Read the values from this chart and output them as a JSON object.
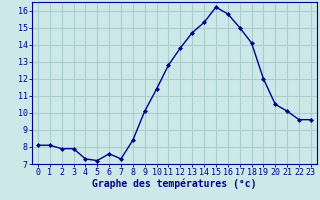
{
  "hours": [
    0,
    1,
    2,
    3,
    4,
    5,
    6,
    7,
    8,
    9,
    10,
    11,
    12,
    13,
    14,
    15,
    16,
    17,
    18,
    19,
    20,
    21,
    22,
    23
  ],
  "temperatures": [
    8.1,
    8.1,
    7.9,
    7.9,
    7.3,
    7.2,
    7.6,
    7.3,
    8.4,
    10.1,
    11.4,
    12.8,
    13.8,
    14.7,
    15.3,
    16.2,
    15.8,
    15.0,
    14.1,
    12.0,
    10.5,
    10.1,
    9.6,
    9.6
  ],
  "line_color": "#00008B",
  "marker": "D",
  "marker_size": 2.0,
  "background_color": "#cce8e8",
  "grid_color": "#aacece",
  "xlabel": "Graphe des températures (°c)",
  "xlabel_color": "#00008B",
  "tick_color": "#00008B",
  "ylim": [
    7,
    16.5
  ],
  "yticks": [
    7,
    8,
    9,
    10,
    11,
    12,
    13,
    14,
    15,
    16
  ],
  "xlim": [
    -0.5,
    23.5
  ],
  "line_width": 1.0,
  "xlabel_fontsize": 7.0,
  "tick_fontsize": 6.0
}
